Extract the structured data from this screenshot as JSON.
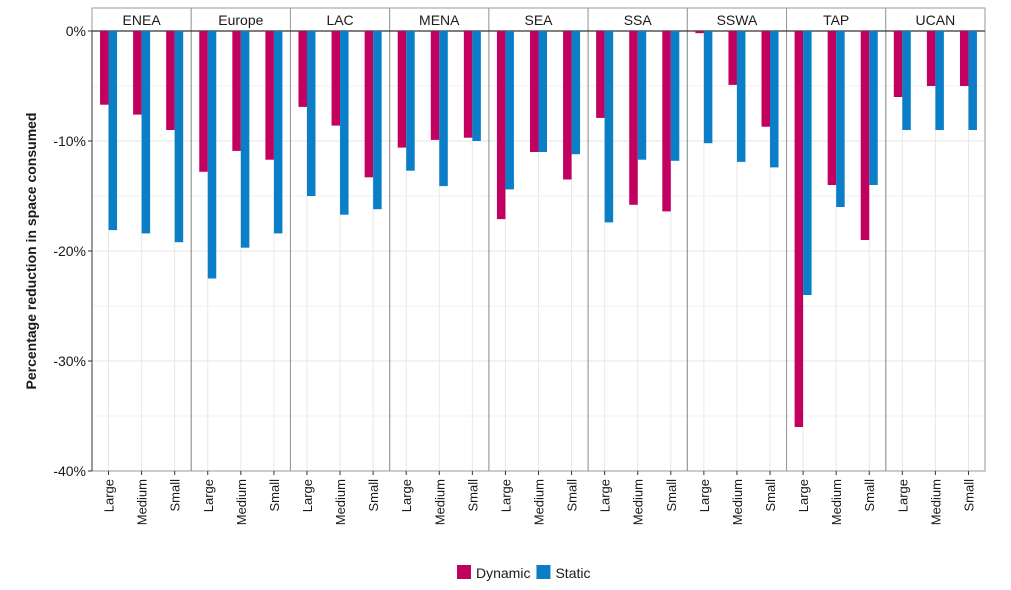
{
  "chart_data": {
    "type": "bar",
    "title": "",
    "xlabel": "",
    "ylabel": "Percentage reduction in space consumed",
    "ylim": [
      -40,
      0
    ],
    "yticks": [
      0,
      -10,
      -20,
      -30,
      -40
    ],
    "ytick_labels": [
      "0%",
      "-10%",
      "-20%",
      "-30%",
      "-40%"
    ],
    "grid": true,
    "legend_position": "bottom",
    "facets": [
      "ENEA",
      "Europe",
      "LAC",
      "MENA",
      "SEA",
      "SSA",
      "SSWA",
      "TAP",
      "UCAN"
    ],
    "categories": [
      "Large",
      "Medium",
      "Small"
    ],
    "series": [
      {
        "name": "Dynamic",
        "color": "#c2005f",
        "values": {
          "ENEA": [
            -6.7,
            -7.6,
            -9.0
          ],
          "Europe": [
            -12.8,
            -10.9,
            -11.7
          ],
          "LAC": [
            -6.9,
            -8.6,
            -13.3
          ],
          "MENA": [
            -10.6,
            -9.9,
            -9.7
          ],
          "SEA": [
            -17.1,
            -11.0,
            -13.5
          ],
          "SSA": [
            -7.9,
            -15.8,
            -16.4
          ],
          "SSWA": [
            -0.2,
            -4.9,
            -8.7
          ],
          "TAP": [
            -36.0,
            -14.0,
            -19.0
          ],
          "UCAN": [
            -6.0,
            -5.0,
            -5.0
          ]
        }
      },
      {
        "name": "Static",
        "color": "#0a7fc8",
        "values": {
          "ENEA": [
            -18.1,
            -18.4,
            -19.2
          ],
          "Europe": [
            -22.5,
            -19.7,
            -18.4
          ],
          "LAC": [
            -15.0,
            -16.7,
            -16.2
          ],
          "MENA": [
            -12.7,
            -14.1,
            -10.0
          ],
          "SEA": [
            -14.4,
            -11.0,
            -11.2
          ],
          "SSA": [
            -17.4,
            -11.7,
            -11.8
          ],
          "SSWA": [
            -10.2,
            -11.9,
            -12.4
          ],
          "TAP": [
            -24.0,
            -16.0,
            -14.0
          ],
          "UCAN": [
            -9.0,
            -9.0,
            -9.0
          ]
        }
      }
    ]
  }
}
